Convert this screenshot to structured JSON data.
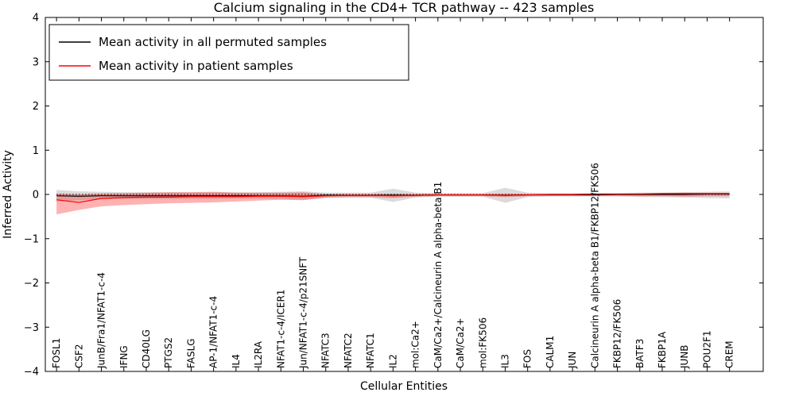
{
  "chart_data": {
    "type": "line",
    "title": "Calcium signaling in the CD4+ TCR pathway -- 423 samples",
    "xlabel": "Cellular Entities",
    "ylabel": "Inferred Activity",
    "ylim": [
      -4,
      4
    ],
    "yticks": [
      -4,
      -3,
      -2,
      -1,
      0,
      1,
      2,
      3,
      4
    ],
    "grid": false,
    "legend": {
      "position": "upper left",
      "entries": [
        {
          "label": "Mean activity in all permuted samples",
          "color": "#000000"
        },
        {
          "label": "Mean activity in patient samples",
          "color": "#ff0000"
        }
      ]
    },
    "zero_line": {
      "y": 0,
      "style": "dotted",
      "color": "#000000"
    },
    "categories": [
      "FOSL1",
      "CSF2",
      "JunB/Fra1/NFAT1-c-4",
      "IFNG",
      "CD40LG",
      "PTGS2",
      "FASLG",
      "AP-1/NFAT1-c-4",
      "IL4",
      "IL2RA",
      "NFAT1-c-4/ICER1",
      "Jun/NFAT1-c-4/p21SNFT",
      "NFATC3",
      "NFATC2",
      "NFATC1",
      "IL2",
      "mol:Ca2+",
      "CaM/Ca2+/Calcineurin A alpha-beta B1",
      "CaM/Ca2+",
      "mol:FK506",
      "IL3",
      "FOS",
      "CALM1",
      "JUN",
      "Calcineurin A alpha-beta B1/FKBP12/FK506",
      "FKBP12/FK506",
      "BATF3",
      "FKBP1A",
      "JUNB",
      "POU2F1",
      "CREM"
    ],
    "series": [
      {
        "name": "Mean activity in all permuted samples",
        "color": "#000000",
        "values": [
          -0.03,
          -0.04,
          -0.03,
          -0.03,
          -0.03,
          -0.03,
          -0.03,
          -0.03,
          -0.03,
          -0.03,
          -0.03,
          -0.04,
          -0.02,
          -0.02,
          -0.02,
          -0.02,
          -0.02,
          -0.01,
          -0.01,
          -0.01,
          -0.02,
          -0.01,
          -0.01,
          -0.01,
          -0.01,
          0.0,
          0.0,
          0.0,
          0.0,
          0.01,
          0.01
        ],
        "band": {
          "upper": [
            0.1,
            0.07,
            0.06,
            0.05,
            0.05,
            0.05,
            0.05,
            0.05,
            0.05,
            0.05,
            0.06,
            0.07,
            0.04,
            0.04,
            0.04,
            0.13,
            0.04,
            0.03,
            0.03,
            0.03,
            0.15,
            0.04,
            0.03,
            0.03,
            0.03,
            0.03,
            0.04,
            0.04,
            0.05,
            0.06,
            0.07
          ],
          "lower": [
            -0.16,
            -0.13,
            -0.11,
            -0.1,
            -0.1,
            -0.1,
            -0.1,
            -0.1,
            -0.09,
            -0.09,
            -0.1,
            -0.12,
            -0.08,
            -0.07,
            -0.07,
            -0.17,
            -0.07,
            -0.05,
            -0.05,
            -0.05,
            -0.19,
            -0.06,
            -0.05,
            -0.05,
            -0.05,
            -0.05,
            -0.06,
            -0.06,
            -0.07,
            -0.08,
            -0.09
          ],
          "color": "#999999",
          "opacity": 0.35
        }
      },
      {
        "name": "Mean activity in patient samples",
        "color": "#ff0000",
        "values": [
          -0.12,
          -0.18,
          -0.09,
          -0.07,
          -0.06,
          -0.06,
          -0.05,
          -0.05,
          -0.05,
          -0.04,
          -0.04,
          -0.05,
          -0.03,
          -0.02,
          -0.02,
          -0.03,
          -0.02,
          -0.01,
          -0.01,
          -0.01,
          -0.02,
          -0.01,
          0.0,
          0.0,
          0.01,
          0.01,
          0.01,
          0.02,
          0.02,
          0.02,
          0.02
        ],
        "band": {
          "upper": [
            0.02,
            0.0,
            0.02,
            0.03,
            0.04,
            0.05,
            0.05,
            0.06,
            0.04,
            0.04,
            0.04,
            0.05,
            0.01,
            0.01,
            0.01,
            0.02,
            0.01,
            0.01,
            0.01,
            0.01,
            0.02,
            0.01,
            0.01,
            0.01,
            0.02,
            0.02,
            0.03,
            0.03,
            0.04,
            0.03,
            0.03
          ],
          "lower": [
            -0.45,
            -0.35,
            -0.27,
            -0.24,
            -0.22,
            -0.2,
            -0.19,
            -0.18,
            -0.16,
            -0.14,
            -0.12,
            -0.13,
            -0.07,
            -0.06,
            -0.06,
            -0.08,
            -0.05,
            -0.04,
            -0.04,
            -0.04,
            -0.06,
            -0.04,
            -0.03,
            -0.03,
            -0.03,
            -0.03,
            -0.04,
            -0.04,
            -0.05,
            -0.04,
            -0.04
          ],
          "color": "#ff0000",
          "opacity": 0.3
        }
      }
    ]
  }
}
